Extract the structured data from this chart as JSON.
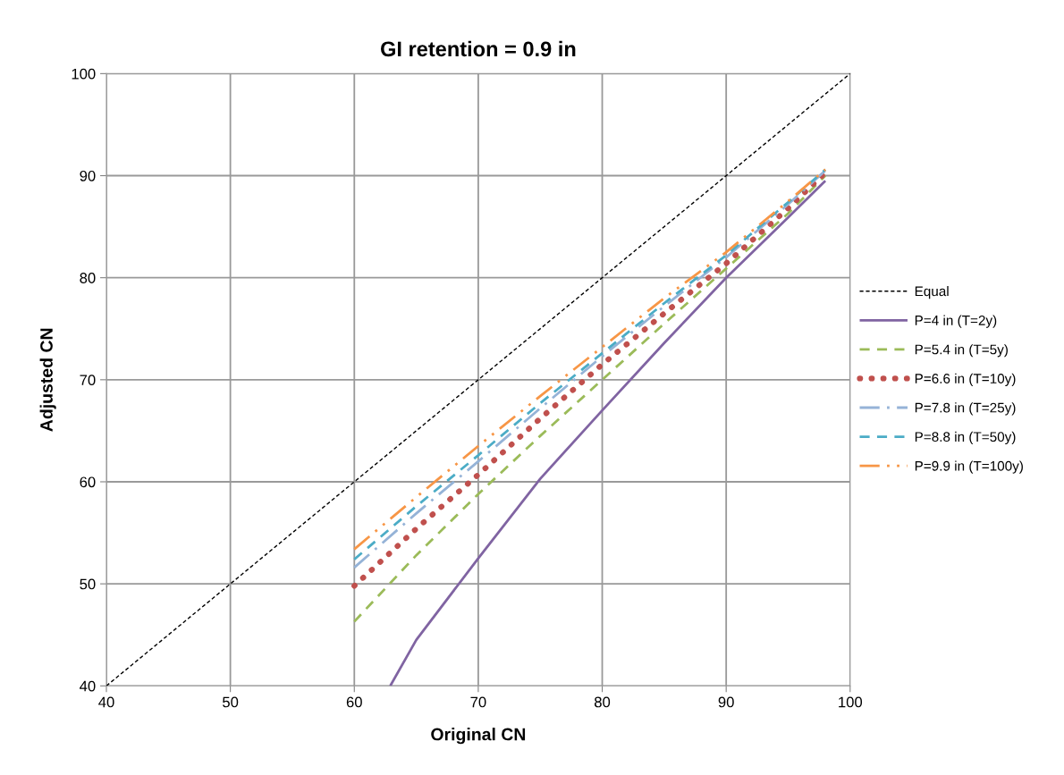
{
  "chart_data": {
    "type": "line",
    "title": "GI retention = 0.9 in",
    "xlabel": "Original CN",
    "ylabel": "Adjusted CN",
    "xlim": [
      40,
      100
    ],
    "xticks": [
      40,
      50,
      60,
      70,
      80,
      90,
      100
    ],
    "ylim": [
      40,
      100
    ],
    "yticks": [
      40,
      50,
      60,
      70,
      80,
      90,
      100
    ],
    "grid": true,
    "legend": "right",
    "marker": "none",
    "series": [
      {
        "name": "Equal",
        "color": "#000000",
        "line_style": "dotted",
        "x": [
          40,
          100
        ],
        "values": [
          40,
          100
        ]
      },
      {
        "name": "P=4 in (T=2y)",
        "color": "#8064a2",
        "line_style": "solid",
        "x": [
          62.9,
          65,
          70,
          75,
          80,
          85,
          90,
          95,
          98
        ],
        "values": [
          40,
          44.5,
          52.5,
          60.3,
          67,
          73.6,
          80,
          85.9,
          89.5
        ]
      },
      {
        "name": "P=5.4 in (T=5y)",
        "color": "#9bbb59",
        "line_style": "dashed",
        "x": [
          60,
          65,
          70,
          75,
          80,
          85,
          90,
          95,
          98
        ],
        "values": [
          46.3,
          52.8,
          58.8,
          64.5,
          70.0,
          75.5,
          80.9,
          86.3,
          90.0
        ]
      },
      {
        "name": "P=6.6 in (T=10y)",
        "color": "#c0504d",
        "line_style": "dotted",
        "x": [
          60,
          65,
          70,
          75,
          80,
          85,
          90,
          95,
          98
        ],
        "values": [
          49.8,
          55.4,
          60.7,
          66.2,
          71.5,
          76.5,
          81.4,
          86.8,
          90.3
        ]
      },
      {
        "name": "P=7.8 in (T=25y)",
        "color": "#95b3d7",
        "line_style": "dashdot",
        "x": [
          60,
          65,
          70,
          75,
          80,
          85,
          90,
          95,
          98
        ],
        "values": [
          51.6,
          56.9,
          62.0,
          67.2,
          72.3,
          77.2,
          82.0,
          87.2,
          90.5
        ]
      },
      {
        "name": "P=8.8 in (T=50y)",
        "color": "#4bacc6",
        "line_style": "dashed",
        "x": [
          60,
          65,
          70,
          75,
          80,
          85,
          90,
          95,
          98
        ],
        "values": [
          52.4,
          57.6,
          62.6,
          67.7,
          72.6,
          77.5,
          82.2,
          87.4,
          90.6
        ]
      },
      {
        "name": "P=9.9 in (T=100y)",
        "color": "#f79646",
        "line_style": "dashdotdot",
        "x": [
          60,
          65,
          70,
          75,
          80,
          85,
          90,
          95,
          98
        ],
        "values": [
          53.4,
          58.5,
          63.5,
          68.4,
          73.2,
          78.0,
          82.5,
          87.5,
          90.6
        ]
      }
    ]
  }
}
